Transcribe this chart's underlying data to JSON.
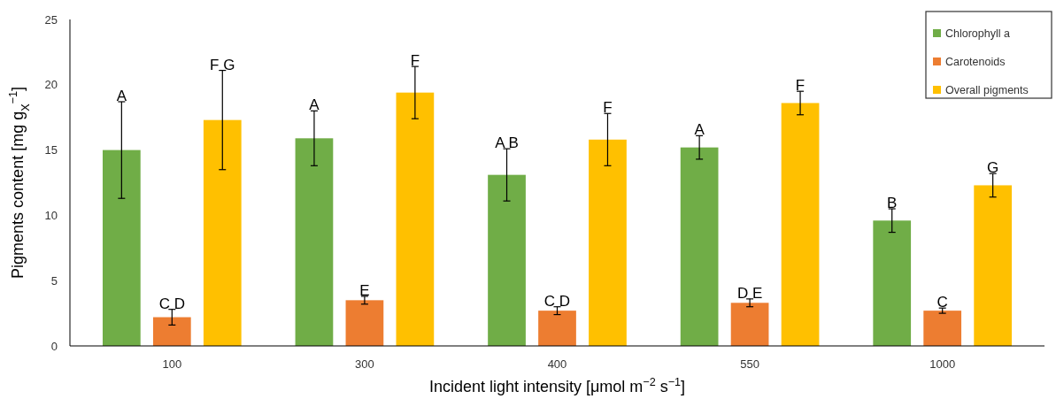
{
  "chart_data": {
    "type": "bar",
    "categories": [
      "100",
      "300",
      "400",
      "550",
      "1000"
    ],
    "series": [
      {
        "name": "Chlorophyll a",
        "color": "#70ad47",
        "values": [
          15.0,
          15.9,
          13.1,
          15.2,
          9.6
        ],
        "errors": [
          3.7,
          2.1,
          2.0,
          0.9,
          0.9
        ],
        "value_labels": [
          "A",
          "A",
          "A B",
          "A",
          "B"
        ]
      },
      {
        "name": "Carotenoids",
        "color": "#ed7d31",
        "values": [
          2.2,
          3.5,
          2.7,
          3.3,
          2.7
        ],
        "errors": [
          0.6,
          0.3,
          0.3,
          0.3,
          0.2
        ],
        "value_labels": [
          "C D",
          "E",
          "C D",
          "D E",
          "C"
        ]
      },
      {
        "name": "Overall pigments",
        "color": "#ffc000",
        "values": [
          17.3,
          19.4,
          15.8,
          18.6,
          12.3
        ],
        "errors": [
          3.8,
          2.0,
          2.0,
          0.9,
          0.9
        ],
        "value_labels": [
          "F G",
          "F",
          "F",
          "F",
          "G"
        ]
      }
    ],
    "xlabel": "Incident light intensity [μmol m$^{−2}$ s$^{−1}$]",
    "ylabel": "Pigments content [mg g$_{X}$$^{−1}$]",
    "ylim": [
      0,
      25
    ],
    "yticks": [
      0,
      5,
      10,
      15,
      20,
      25
    ],
    "grid": false,
    "legend": "top right"
  }
}
